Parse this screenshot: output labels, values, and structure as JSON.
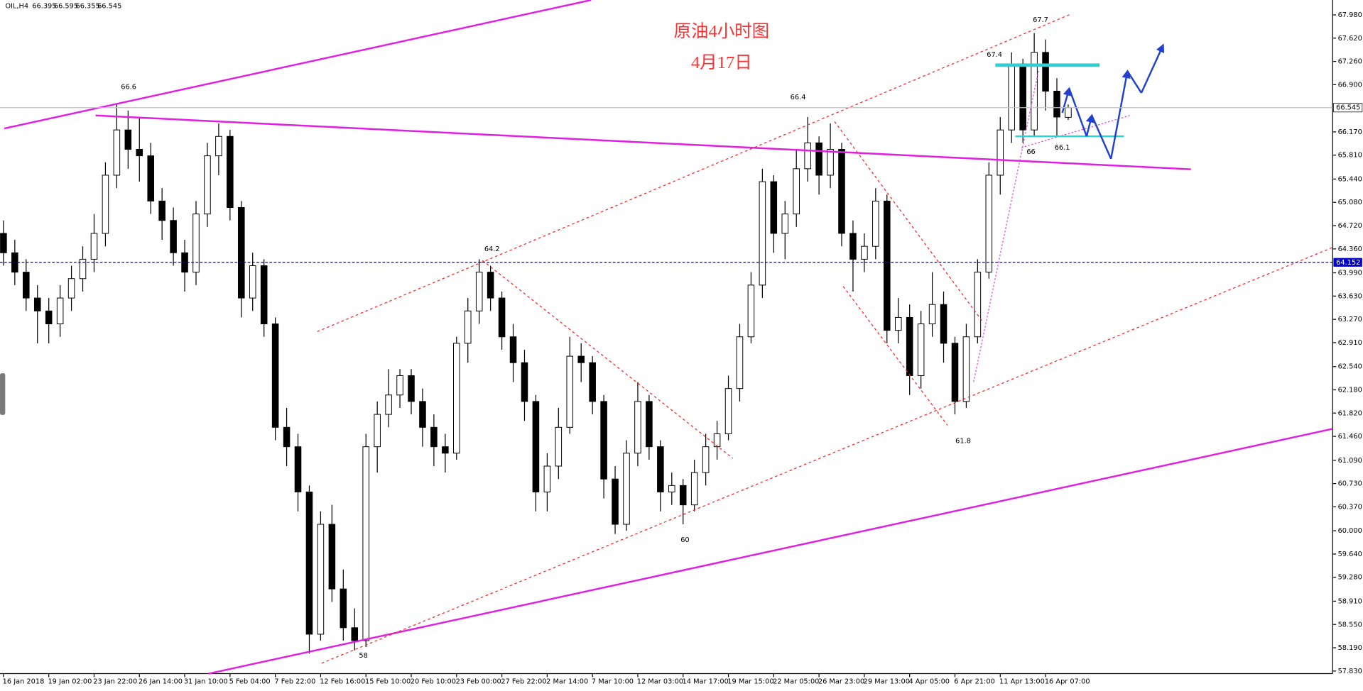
{
  "chart_data": {
    "type": "candlestick",
    "symbol": "OIL,H4",
    "title": "原油4小时图",
    "subtitle": "4月17日",
    "categories": [
      "16 Jan 2018",
      null,
      null,
      null,
      "19 Jan 02:00",
      null,
      null,
      null,
      "23 Jan 22:00",
      null,
      null,
      null,
      "26 Jan 14:00",
      null,
      null,
      null,
      "31 Jan 10:00",
      null,
      null,
      null,
      "5 Feb 04:00",
      null,
      null,
      null,
      "7 Feb 22:00",
      null,
      null,
      null,
      "12 Feb 16:00",
      null,
      null,
      null,
      "15 Feb 10:00",
      null,
      null,
      null,
      "20 Feb 10:00",
      null,
      null,
      null,
      "23 Feb 00:00",
      null,
      null,
      null,
      "27 Feb 22:00",
      null,
      null,
      null,
      "2 Mar 14:00",
      null,
      null,
      null,
      "7 Mar 10:00",
      null,
      null,
      null,
      "12 Mar 03:00",
      null,
      null,
      null,
      "14 Mar 17:00",
      null,
      null,
      null,
      "19 Mar 15:00",
      null,
      null,
      null,
      "22 Mar 05:00",
      null,
      null,
      null,
      "26 Mar 23:00",
      null,
      null,
      null,
      "29 Mar 13:00",
      null,
      null,
      null,
      "4 Apr 05:00",
      null,
      null,
      null,
      "6 Apr 21:00",
      null,
      null,
      null,
      "11 Apr 13:00",
      null,
      null,
      null,
      "16 Apr 07:00",
      null,
      null
    ],
    "open": [
      64.6,
      64.3,
      64.0,
      63.6,
      63.4,
      63.2,
      63.6,
      63.9,
      64.2,
      64.6,
      65.5,
      66.2,
      65.9,
      65.8,
      65.1,
      64.8,
      64.3,
      64.0,
      64.9,
      65.8,
      66.1,
      65.0,
      63.6,
      64.1,
      63.2,
      61.6,
      61.3,
      60.6,
      58.4,
      60.1,
      59.1,
      58.5,
      58.3,
      61.3,
      61.8,
      62.1,
      62.4,
      62.0,
      61.6,
      61.3,
      61.2,
      62.9,
      63.4,
      64.0,
      63.6,
      63.0,
      62.6,
      62.0,
      60.6,
      61.0,
      61.6,
      62.7,
      62.6,
      62.0,
      60.8,
      60.1,
      61.2,
      62.0,
      61.3,
      60.6,
      60.7,
      60.4,
      60.9,
      61.3,
      61.5,
      62.2,
      63.0,
      63.8,
      65.4,
      64.6,
      64.9,
      65.6,
      66.0,
      65.5,
      65.9,
      64.6,
      64.2,
      64.4,
      65.1,
      63.1,
      63.3,
      62.4,
      63.2,
      63.5,
      62.9,
      62.0,
      63.0,
      64.0,
      65.5,
      66.2,
      67.2,
      66.2,
      67.4,
      66.8,
      66.395
    ],
    "high": [
      64.8,
      64.5,
      64.2,
      63.8,
      63.6,
      63.8,
      64.1,
      64.4,
      64.9,
      65.7,
      66.6,
      66.5,
      66.4,
      66.0,
      65.3,
      65.0,
      64.5,
      65.1,
      66.0,
      66.3,
      66.2,
      65.1,
      64.3,
      64.2,
      63.3,
      61.9,
      61.5,
      60.7,
      60.3,
      60.4,
      59.4,
      58.8,
      61.5,
      62.0,
      62.5,
      62.5,
      62.5,
      62.2,
      61.8,
      61.5,
      63.0,
      63.6,
      64.2,
      64.1,
      63.7,
      63.2,
      62.8,
      62.1,
      61.2,
      61.9,
      63.0,
      62.9,
      62.7,
      62.1,
      61.0,
      61.4,
      62.3,
      62.1,
      61.4,
      60.9,
      60.8,
      61.1,
      61.5,
      61.7,
      62.4,
      63.2,
      64.0,
      65.6,
      65.5,
      65.1,
      65.9,
      66.4,
      66.1,
      66.3,
      66.0,
      64.8,
      64.6,
      65.3,
      65.2,
      63.6,
      63.5,
      63.4,
      64.0,
      63.7,
      63.0,
      63.2,
      64.2,
      65.7,
      66.4,
      67.4,
      67.3,
      67.7,
      67.6,
      67.0,
      66.595
    ],
    "low": [
      64.1,
      63.8,
      63.4,
      62.9,
      62.9,
      63.0,
      63.4,
      63.7,
      64.0,
      64.4,
      65.3,
      65.6,
      65.4,
      64.9,
      64.5,
      64.1,
      63.7,
      63.8,
      64.7,
      65.5,
      64.8,
      63.3,
      63.4,
      63.0,
      61.4,
      61.0,
      60.3,
      58.1,
      58.3,
      58.9,
      58.3,
      58.15,
      58.2,
      60.9,
      61.6,
      61.9,
      61.8,
      61.3,
      61.0,
      60.9,
      61.1,
      62.6,
      63.2,
      63.4,
      62.8,
      62.3,
      61.7,
      60.3,
      60.3,
      60.8,
      61.5,
      62.3,
      61.8,
      60.5,
      59.95,
      60.0,
      61.0,
      61.1,
      60.3,
      60.4,
      60.1,
      60.3,
      60.7,
      61.1,
      61.4,
      62.0,
      62.9,
      63.6,
      64.3,
      64.2,
      64.7,
      65.4,
      65.2,
      65.3,
      64.4,
      63.7,
      64.0,
      64.2,
      62.9,
      62.9,
      62.1,
      62.2,
      63.0,
      62.6,
      61.8,
      61.9,
      62.9,
      63.9,
      65.2,
      66.0,
      66.0,
      66.1,
      66.5,
      66.1,
      66.355
    ],
    "close": [
      64.3,
      64.0,
      63.6,
      63.4,
      63.2,
      63.6,
      63.9,
      64.2,
      64.6,
      65.5,
      66.2,
      65.9,
      65.8,
      65.1,
      64.8,
      64.3,
      64.0,
      64.9,
      65.8,
      66.1,
      65.0,
      63.6,
      64.1,
      63.2,
      61.6,
      61.3,
      60.6,
      58.4,
      60.1,
      59.1,
      58.5,
      58.3,
      61.3,
      61.8,
      62.1,
      62.4,
      62.0,
      61.6,
      61.3,
      61.2,
      62.9,
      63.4,
      64.0,
      63.6,
      63.0,
      62.6,
      62.0,
      60.6,
      61.0,
      61.6,
      62.7,
      62.6,
      62.0,
      60.8,
      60.1,
      61.2,
      62.0,
      61.3,
      60.6,
      60.7,
      60.4,
      60.9,
      61.3,
      61.5,
      62.2,
      63.0,
      63.8,
      65.4,
      64.6,
      64.9,
      65.6,
      66.0,
      65.5,
      65.9,
      64.6,
      64.2,
      64.4,
      65.1,
      63.1,
      63.3,
      62.4,
      63.2,
      63.5,
      62.9,
      62.0,
      63.0,
      64.0,
      65.5,
      66.2,
      67.2,
      66.2,
      67.4,
      66.8,
      66.4,
      66.545
    ],
    "ylim": [
      57.79,
      68.21
    ],
    "yticks": [
      {
        "value": 67.98,
        "label": "67.980"
      },
      {
        "value": 67.62,
        "label": "67.620"
      },
      {
        "value": 67.26,
        "label": "67.260"
      },
      {
        "value": 66.9,
        "label": "66.900"
      },
      {
        "value": 66.17,
        "label": "66.170"
      },
      {
        "value": 65.81,
        "label": "65.810"
      },
      {
        "value": 65.44,
        "label": "65.440"
      },
      {
        "value": 65.08,
        "label": "65.080"
      },
      {
        "value": 64.72,
        "label": "64.720"
      },
      {
        "value": 64.36,
        "label": "64.360"
      },
      {
        "value": 63.99,
        "label": "63.990"
      },
      {
        "value": 63.63,
        "label": "63.630"
      },
      {
        "value": 63.27,
        "label": "63.270"
      },
      {
        "value": 62.91,
        "label": "62.910"
      },
      {
        "value": 62.54,
        "label": "62.540"
      },
      {
        "value": 62.18,
        "label": "62.180"
      },
      {
        "value": 61.82,
        "label": "61.820"
      },
      {
        "value": 61.46,
        "label": "61.460"
      },
      {
        "value": 61.09,
        "label": "61.090"
      },
      {
        "value": 60.73,
        "label": "60.730"
      },
      {
        "value": 60.37,
        "label": "60.370"
      },
      {
        "value": 60,
        "label": "60.000"
      },
      {
        "value": 59.64,
        "label": "59.640"
      },
      {
        "value": 59.28,
        "label": "59.280"
      },
      {
        "value": 58.91,
        "label": "58.910"
      },
      {
        "value": 58.55,
        "label": "58.550"
      },
      {
        "value": 58.19,
        "label": "58.190"
      },
      {
        "value": 57.83,
        "label": "57.830"
      }
    ],
    "level": 64.152,
    "level_color": "#0000c8",
    "annotations": [
      "66.6",
      "64.2",
      "66.4",
      "67.7",
      "67.4",
      "66",
      "66.1",
      "58",
      "60",
      "61.8"
    ]
  }
}
